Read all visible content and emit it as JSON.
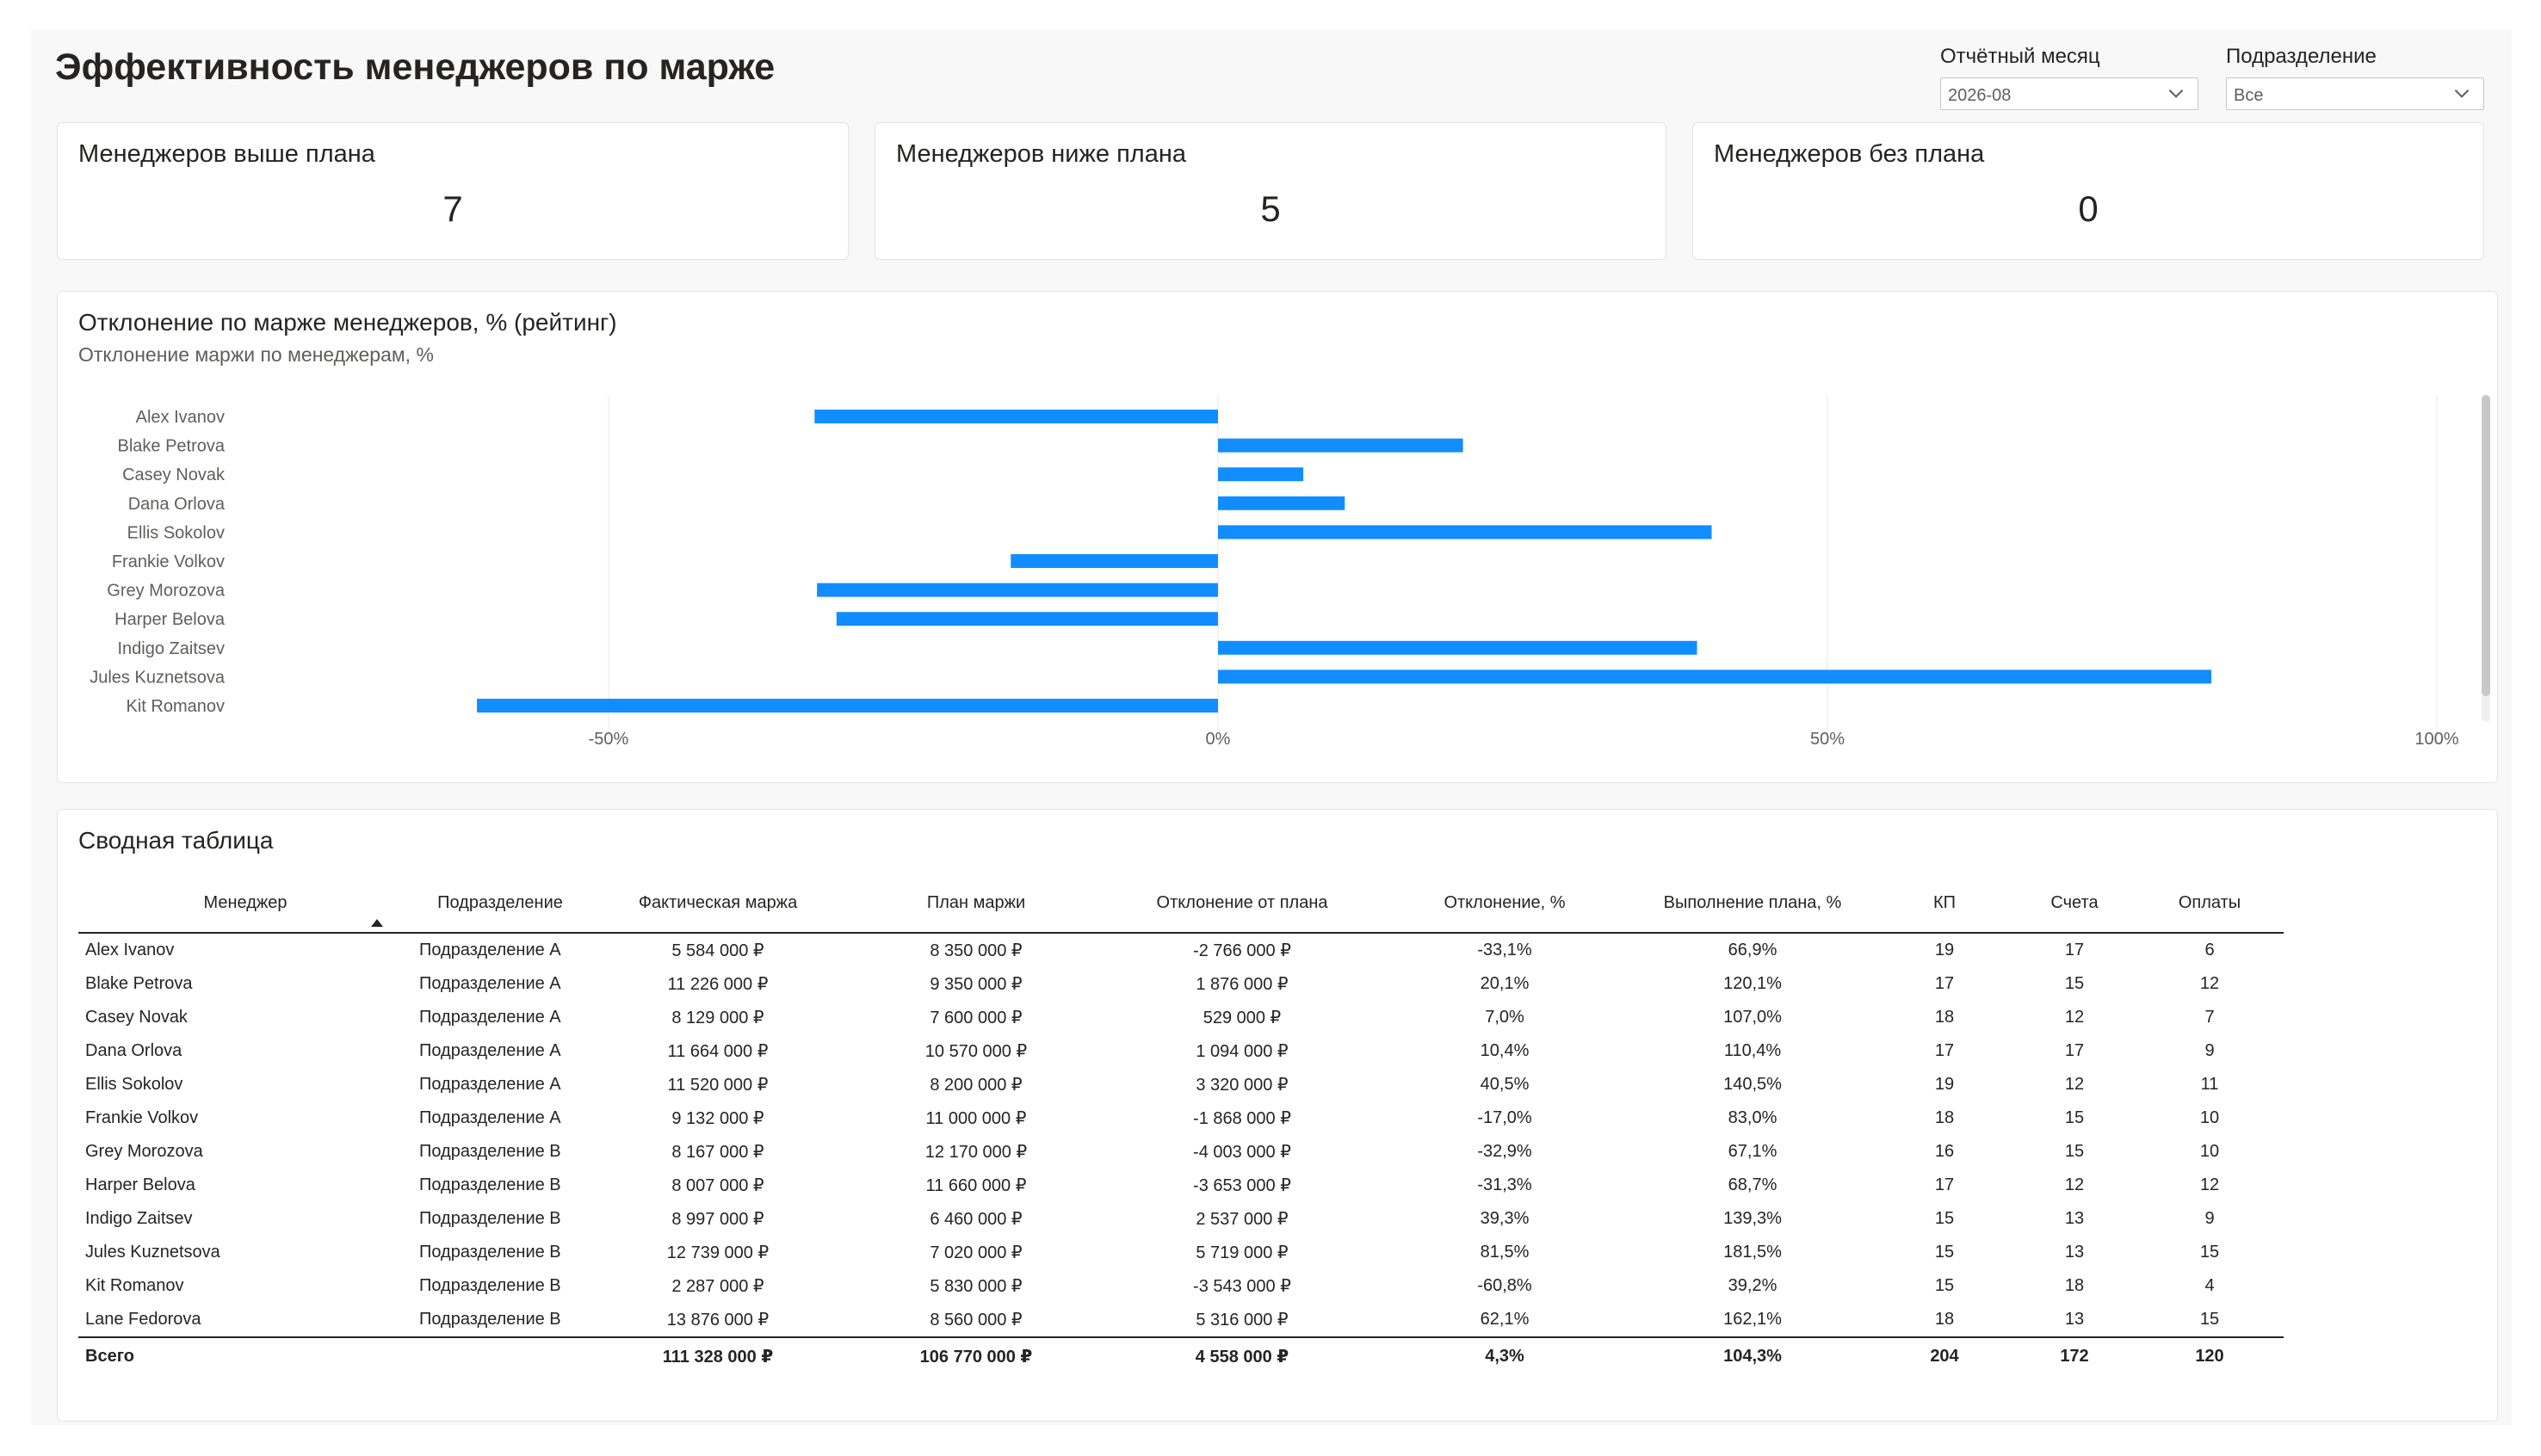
{
  "header": {
    "title": "Эффективность менеджеров по марже"
  },
  "filters": {
    "month": {
      "label": "Отчётный месяц",
      "value": "2026-08"
    },
    "division": {
      "label": "Подразделение",
      "value": "Все"
    }
  },
  "cards": [
    {
      "label": "Менеджеров выше плана",
      "value": "7"
    },
    {
      "label": "Менеджеров ниже плана",
      "value": "5"
    },
    {
      "label": "Менеджеров без плана",
      "value": "0"
    }
  ],
  "chart_panel": {
    "title": "Отклонение по марже менеджеров, % (рейтинг)",
    "subtitle": "Отклонение маржи по менеджерам, %"
  },
  "chart_data": {
    "type": "bar",
    "orientation": "horizontal",
    "categories": [
      "Alex Ivanov",
      "Blake Petrova",
      "Casey Novak",
      "Dana Orlova",
      "Ellis Sokolov",
      "Frankie Volkov",
      "Grey Morozova",
      "Harper Belova",
      "Indigo Zaitsev",
      "Jules Kuznetsova",
      "Kit Romanov"
    ],
    "values": [
      -33.1,
      20.1,
      7.0,
      10.4,
      40.5,
      -17.0,
      -32.9,
      -31.3,
      39.3,
      81.5,
      -60.8
    ],
    "xlim": [
      -65,
      101
    ],
    "xticks": [
      -50,
      0,
      50,
      100
    ],
    "xtick_labels": [
      "-50%",
      "0%",
      "50%",
      "100%"
    ],
    "grid": true,
    "color": "#118dff",
    "xlabel": "",
    "ylabel": ""
  },
  "table": {
    "title": "Сводная таблица",
    "columns": [
      "Менеджер",
      "Подразделение",
      "Фактическая маржа",
      "План маржи",
      "Отклонение от плана",
      "Отклонение, %",
      "Выполнение плана, %",
      "КП",
      "Счета",
      "Оплаты"
    ],
    "rows": [
      [
        "Alex Ivanov",
        "Подразделение A",
        "5 584 000 ₽",
        "8 350 000 ₽",
        "-2 766 000 ₽",
        "-33,1%",
        "66,9%",
        "19",
        "17",
        "6"
      ],
      [
        "Blake Petrova",
        "Подразделение A",
        "11 226 000 ₽",
        "9 350 000 ₽",
        "1 876 000 ₽",
        "20,1%",
        "120,1%",
        "17",
        "15",
        "12"
      ],
      [
        "Casey Novak",
        "Подразделение A",
        "8 129 000 ₽",
        "7 600 000 ₽",
        "529 000 ₽",
        "7,0%",
        "107,0%",
        "18",
        "12",
        "7"
      ],
      [
        "Dana Orlova",
        "Подразделение A",
        "11 664 000 ₽",
        "10 570 000 ₽",
        "1 094 000 ₽",
        "10,4%",
        "110,4%",
        "17",
        "17",
        "9"
      ],
      [
        "Ellis Sokolov",
        "Подразделение A",
        "11 520 000 ₽",
        "8 200 000 ₽",
        "3 320 000 ₽",
        "40,5%",
        "140,5%",
        "19",
        "12",
        "11"
      ],
      [
        "Frankie Volkov",
        "Подразделение A",
        "9 132 000 ₽",
        "11 000 000 ₽",
        "-1 868 000 ₽",
        "-17,0%",
        "83,0%",
        "18",
        "15",
        "10"
      ],
      [
        "Grey Morozova",
        "Подразделение B",
        "8 167 000 ₽",
        "12 170 000 ₽",
        "-4 003 000 ₽",
        "-32,9%",
        "67,1%",
        "16",
        "15",
        "10"
      ],
      [
        "Harper Belova",
        "Подразделение B",
        "8 007 000 ₽",
        "11 660 000 ₽",
        "-3 653 000 ₽",
        "-31,3%",
        "68,7%",
        "17",
        "12",
        "12"
      ],
      [
        "Indigo Zaitsev",
        "Подразделение B",
        "8 997 000 ₽",
        "6 460 000 ₽",
        "2 537 000 ₽",
        "39,3%",
        "139,3%",
        "15",
        "13",
        "9"
      ],
      [
        "Jules Kuznetsova",
        "Подразделение B",
        "12 739 000 ₽",
        "7 020 000 ₽",
        "5 719 000 ₽",
        "81,5%",
        "181,5%",
        "15",
        "13",
        "15"
      ],
      [
        "Kit Romanov",
        "Подразделение B",
        "2 287 000 ₽",
        "5 830 000 ₽",
        "-3 543 000 ₽",
        "-60,8%",
        "39,2%",
        "15",
        "18",
        "4"
      ],
      [
        "Lane Fedorova",
        "Подразделение B",
        "13 876 000 ₽",
        "8 560 000 ₽",
        "5 316 000 ₽",
        "62,1%",
        "162,1%",
        "18",
        "13",
        "15"
      ]
    ],
    "total": [
      "Всего",
      "",
      "111 328 000 ₽",
      "106 770 000 ₽",
      "4 558 000 ₽",
      "4,3%",
      "104,3%",
      "204",
      "172",
      "120"
    ]
  }
}
